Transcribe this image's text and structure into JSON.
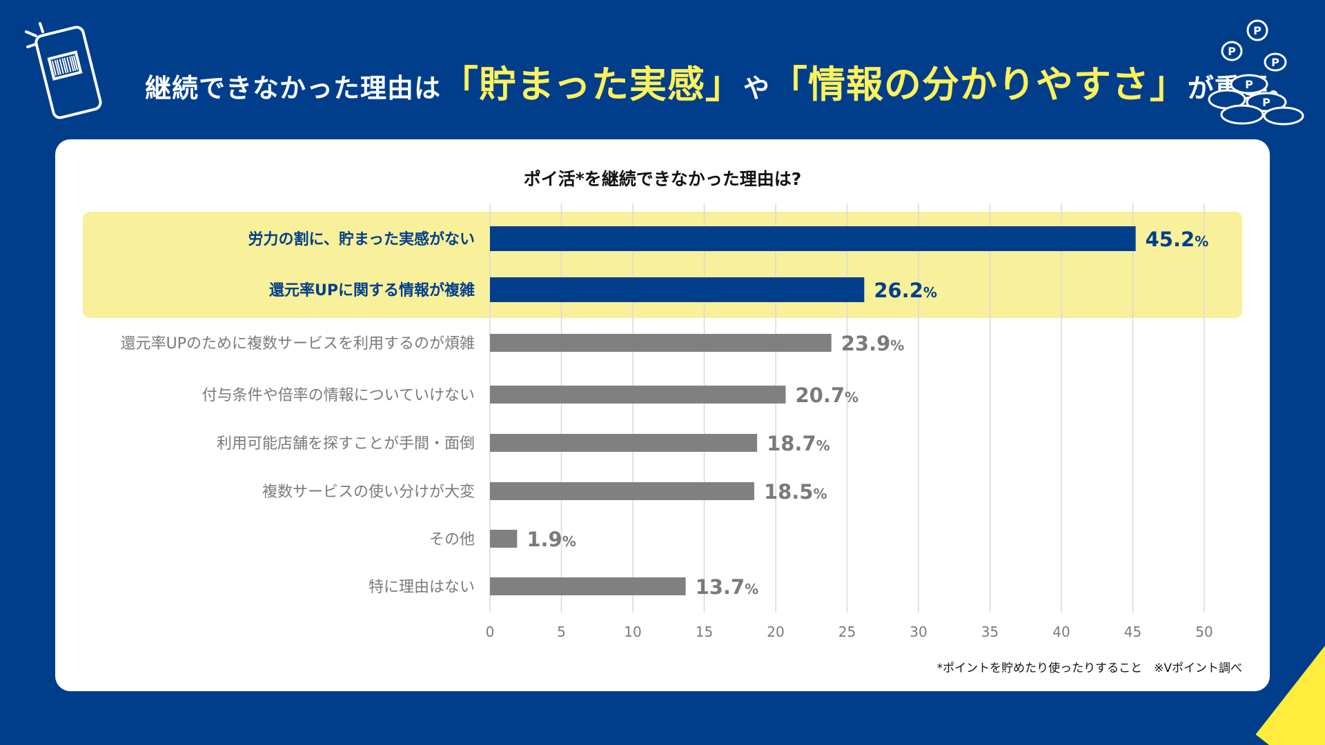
{
  "headline": {
    "part1": "継続できなかった理由は",
    "highlight1": "「貯まった実感」",
    "part2": "や",
    "highlight2": "「情報の分かりやすさ」",
    "part3": "が重要。"
  },
  "icons": {
    "left": "smartphone-barcode-icon",
    "right": "points-coins-icon",
    "coin_letter": "P"
  },
  "colors": {
    "background": "#003e8c",
    "highlight_text": "#fff25a",
    "highlight_band": "#f8f09a",
    "bar_highlight": "#003e8c",
    "bar_normal": "#808080",
    "label_normal": "#7a7a7a"
  },
  "chart_data": {
    "type": "bar",
    "orientation": "horizontal",
    "title": "ポイ活*を継続できなかった理由は?",
    "categories": [
      "労力の割に、貯まった実感がない",
      "還元率UPに関する情報が複雑",
      "還元率UPのために複数サービスを利用するのが煩雑",
      "付与条件や倍率の情報についていけない",
      "利用可能店舗を探すことが手間・面倒",
      "複数サービスの使い分けが大変",
      "その他",
      "特に理由はない"
    ],
    "values": [
      45.2,
      26.2,
      23.9,
      20.7,
      18.7,
      18.5,
      1.9,
      13.7
    ],
    "value_labels": [
      "45.2",
      "26.2",
      "23.9",
      "20.7",
      "18.7",
      "18.5",
      "1.9",
      "13.7"
    ],
    "unit": "%",
    "highlighted": [
      true,
      true,
      false,
      false,
      false,
      false,
      false,
      false
    ],
    "xlim": [
      0,
      50
    ],
    "xticks": [
      "0",
      "5",
      "10",
      "15",
      "20",
      "25",
      "30",
      "35",
      "40",
      "45",
      "50"
    ],
    "grid": true
  },
  "footnote": "*ポイントを貯めたり使ったりすること　※Vポイント調べ"
}
